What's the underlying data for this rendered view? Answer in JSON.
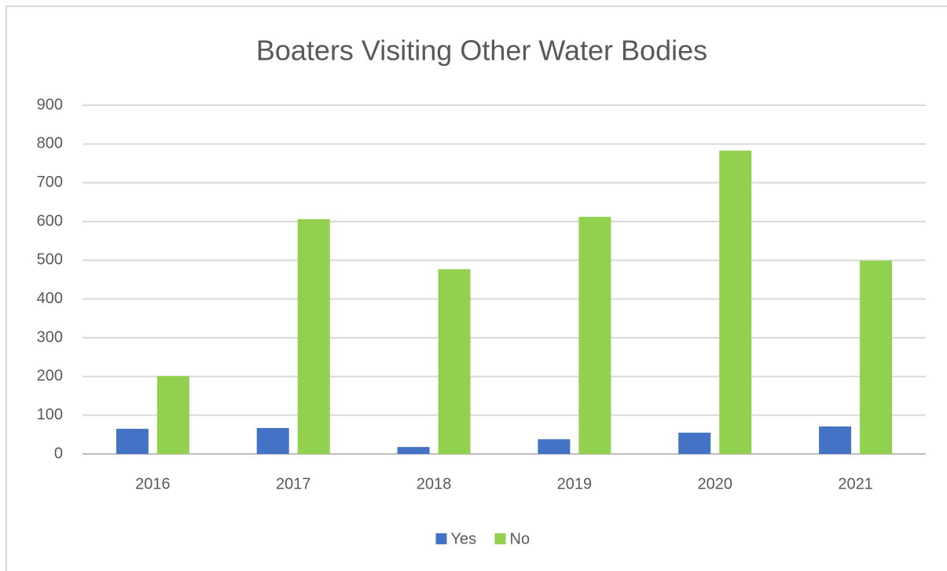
{
  "chart_data": {
    "type": "bar",
    "title": "Boaters Visiting Other Water Bodies",
    "categories": [
      "2016",
      "2017",
      "2018",
      "2019",
      "2020",
      "2021"
    ],
    "series": [
      {
        "name": "Yes",
        "color": "#4472c4",
        "values": [
          65,
          67,
          18,
          38,
          55,
          71
        ]
      },
      {
        "name": "No",
        "color": "#92d050",
        "values": [
          201,
          606,
          477,
          612,
          783,
          499
        ]
      }
    ],
    "ylim": [
      0,
      900
    ],
    "yticks": [
      0,
      100,
      200,
      300,
      400,
      500,
      600,
      700,
      800,
      900
    ],
    "grid": true,
    "legend": "bottom"
  }
}
